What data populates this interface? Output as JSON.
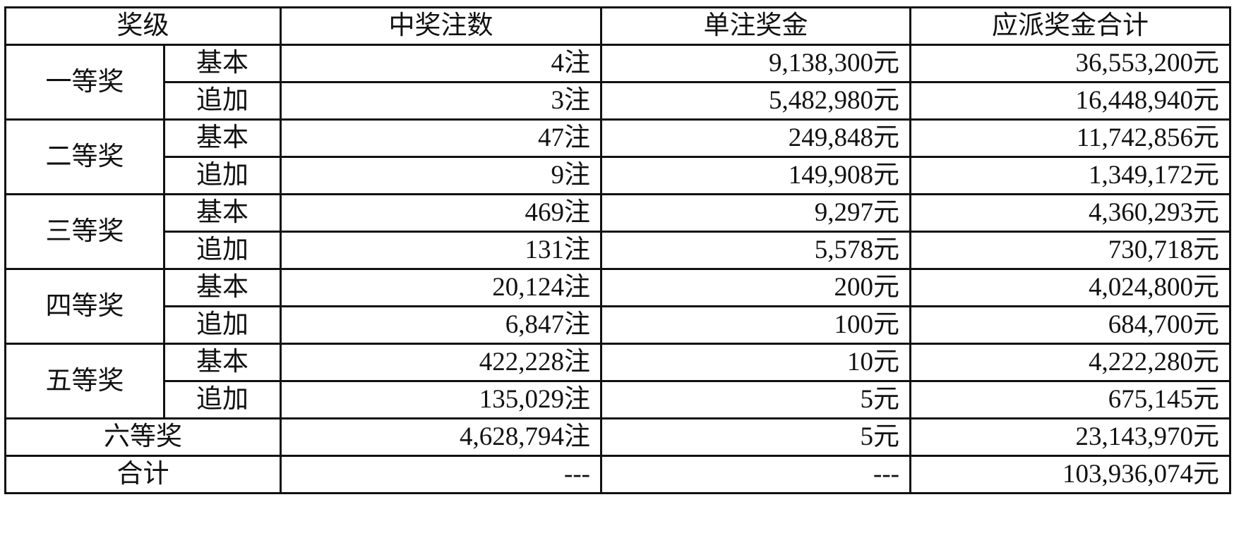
{
  "headers": [
    "奖级",
    "中奖注数",
    "单注奖金",
    "应派奖金合计"
  ],
  "groups": [
    {
      "level": "一等奖",
      "rows": [
        {
          "type": "基本",
          "count": "4注",
          "prize": "9,138,300元",
          "total": "36,553,200元"
        },
        {
          "type": "追加",
          "count": "3注",
          "prize": "5,482,980元",
          "total": "16,448,940元"
        }
      ]
    },
    {
      "level": "二等奖",
      "rows": [
        {
          "type": "基本",
          "count": "47注",
          "prize": "249,848元",
          "total": "11,742,856元"
        },
        {
          "type": "追加",
          "count": "9注",
          "prize": "149,908元",
          "total": "1,349,172元"
        }
      ]
    },
    {
      "level": "三等奖",
      "rows": [
        {
          "type": "基本",
          "count": "469注",
          "prize": "9,297元",
          "total": "4,360,293元"
        },
        {
          "type": "追加",
          "count": "131注",
          "prize": "5,578元",
          "total": "730,718元"
        }
      ]
    },
    {
      "level": "四等奖",
      "rows": [
        {
          "type": "基本",
          "count": "20,124注",
          "prize": "200元",
          "total": "4,024,800元"
        },
        {
          "type": "追加",
          "count": "6,847注",
          "prize": "100元",
          "total": "684,700元"
        }
      ]
    },
    {
      "level": "五等奖",
      "rows": [
        {
          "type": "基本",
          "count": "422,228注",
          "prize": "10元",
          "total": "4,222,280元"
        },
        {
          "type": "追加",
          "count": "135,029注",
          "prize": "5元",
          "total": "675,145元"
        }
      ]
    }
  ],
  "sixth": {
    "level": "六等奖",
    "count": "4,628,794注",
    "prize": "5元",
    "total": "23,143,970元"
  },
  "sum": {
    "label": "合计",
    "count": "---",
    "prize": "---",
    "total": "103,936,074元"
  }
}
